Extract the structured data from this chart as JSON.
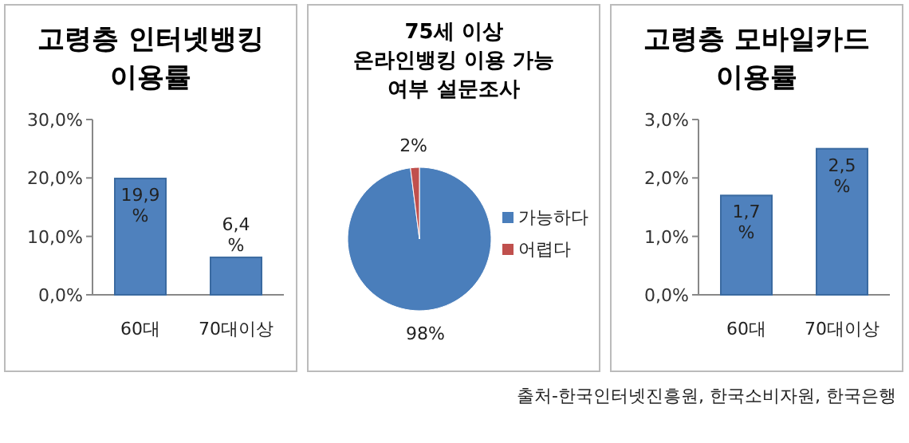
{
  "chart_data": [
    {
      "type": "bar",
      "title": "고령층 인터넷뱅킹 이용률",
      "categories": [
        "60대",
        "70대이상"
      ],
      "values": [
        19.9,
        6.4
      ],
      "value_labels": [
        "19,9 %",
        "6,4 %"
      ],
      "color": "#4f81bd",
      "ylim": [
        0,
        30
      ],
      "yticks": [
        {
          "value": 0,
          "label": "0,0%"
        },
        {
          "value": 10,
          "label": "10,0%"
        },
        {
          "value": 20,
          "label": "20,0%"
        },
        {
          "value": 30,
          "label": "30,0%"
        }
      ]
    },
    {
      "type": "pie",
      "title": "75세 이상 온라인뱅킹 이용 가능 여부 설문조사",
      "categories": [
        "가능하다",
        "어렵다"
      ],
      "values": [
        98,
        2
      ],
      "colors": [
        "#4a7ebb",
        "#c0504d"
      ],
      "value_labels": [
        "98%",
        "2%"
      ],
      "legend": "right"
    },
    {
      "type": "bar",
      "title": "고령층 모바일카드 이용률",
      "categories": [
        "60대",
        "70대이상"
      ],
      "values": [
        1.7,
        2.5
      ],
      "value_labels": [
        "1,7 %",
        "2,5 %"
      ],
      "color": "#4f81bd",
      "ylim": [
        0,
        3
      ],
      "yticks": [
        {
          "value": 0,
          "label": "0,0%"
        },
        {
          "value": 1,
          "label": "1,0%"
        },
        {
          "value": 2,
          "label": "2,0%"
        },
        {
          "value": 3,
          "label": "3,0%"
        }
      ],
      "annotations": [
        "출처-한국인터넷진흥원, 한국소비자원, 한국은행"
      ]
    }
  ]
}
